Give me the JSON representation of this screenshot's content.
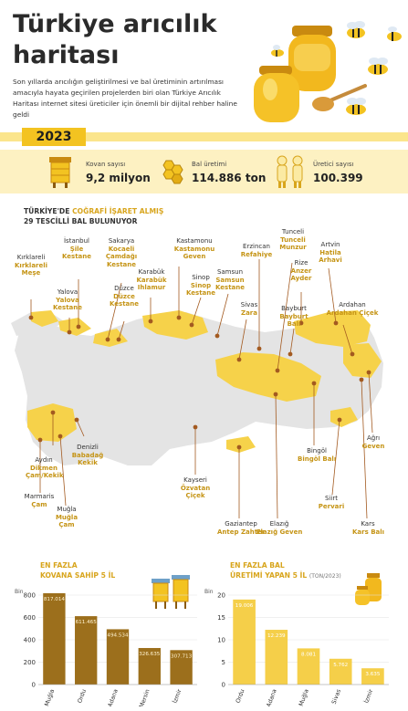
{
  "title": "Türkiye arıcılık haritası",
  "intro": "Son yıllarda arıcılığın geliştirilmesi ve bal üretiminin artırılması amacıyla hayata geçirilen projelerden biri olan Türkiye Arıcılık Haritası internet sitesi üreticiler için önemli bir dijital rehber haline geldi",
  "year": "2023",
  "colors": {
    "accent": "#f3c321",
    "light": "#fdf1c2",
    "map_base": "#e4e4e4",
    "map_region": "#f6d24a",
    "pin": "#a35a20",
    "bar_brown": "#9c6f1c",
    "bar_gold": "#f5cf49"
  },
  "stats": [
    {
      "label": "Kovan sayısı",
      "value": "9,2 milyon",
      "icon": "beehive-icon"
    },
    {
      "label": "Bal üretimi",
      "value": "114.886 ton",
      "icon": "honeycomb-icon"
    },
    {
      "label": "Üretici sayısı",
      "value": "100.399",
      "icon": "beekeepers-icon"
    }
  ],
  "map_heading": {
    "line1_prefix": "TÜRKİYE'DE ",
    "line1_highlight": "COĞRAFİ İŞARET ALMIŞ",
    "line2": "29 TESCİLLİ BAL BULUNUYOR"
  },
  "map_labels": [
    {
      "region": "İstanbul",
      "honeys": [
        "Şile",
        "Kestane"
      ]
    },
    {
      "region": "Kırklareli",
      "honeys": [
        "Kırklareli",
        "Meşe"
      ]
    },
    {
      "region": "Yalova",
      "honeys": [
        "Yalova",
        "Kestane"
      ]
    },
    {
      "region": "Sakarya",
      "honeys": [
        "Kocaeli",
        "Çamdağı",
        "Kestane"
      ]
    },
    {
      "region": "Düzce",
      "honeys": [
        "Düzce",
        "Kestane"
      ]
    },
    {
      "region": "Karabük",
      "honeys": [
        "Karabük",
        "Ihlamur"
      ]
    },
    {
      "region": "Kastamonu",
      "honeys": [
        "Kastamonu",
        "Geven"
      ]
    },
    {
      "region": "Sinop",
      "honeys": [
        "Sinop",
        "Kestane"
      ]
    },
    {
      "region": "Samsun",
      "honeys": [
        "Samsun",
        "Kestane"
      ]
    },
    {
      "region": "Sivas",
      "honeys": [
        "Zara"
      ]
    },
    {
      "region": "Erzincan",
      "honeys": [
        "Refahiye"
      ]
    },
    {
      "region": "Tunceli",
      "honeys": [
        "Tunceli",
        "Munzur"
      ]
    },
    {
      "region": "Rize",
      "honeys": [
        "Anzer",
        "Ayder"
      ]
    },
    {
      "region": "Artvin",
      "honeys": [
        "Hatila",
        "Arhavi"
      ]
    },
    {
      "region": "Bayburt",
      "honeys": [
        "Bayburt",
        "Balı"
      ]
    },
    {
      "region": "Ardahan",
      "honeys": [
        "Ardahan Çiçek"
      ]
    },
    {
      "region": "Aydın",
      "honeys": [
        "Dikmen",
        "Çam/Kekik"
      ]
    },
    {
      "region": "Denizli",
      "honeys": [
        "Babadağ",
        "Kekik"
      ]
    },
    {
      "region": "Marmaris",
      "honeys": [
        "Çam"
      ]
    },
    {
      "region": "Muğla",
      "honeys": [
        "Muğla",
        "Çam"
      ]
    },
    {
      "region": "Kayseri",
      "honeys": [
        "Özvatan",
        "Çiçek"
      ]
    },
    {
      "region": "Gaziantep",
      "honeys": [
        "Antep Zahter"
      ]
    },
    {
      "region": "Elazığ",
      "honeys": [
        "Elazığ Geven"
      ]
    },
    {
      "region": "Bingöl",
      "honeys": [
        "Bingöl Balı"
      ]
    },
    {
      "region": "Siirt",
      "honeys": [
        "Pervari"
      ]
    },
    {
      "region": "Kars",
      "honeys": [
        "Kars Balı"
      ]
    },
    {
      "region": "Ağrı",
      "honeys": [
        "Geven"
      ]
    }
  ],
  "hive_section": {
    "line1": "EN FAZLA",
    "line2": "KOVANA SAHİP 5 İL"
  },
  "honey_section": {
    "line1": "EN FAZLA BAL",
    "line2": "ÜRETİMİ YAPAN 5 İL",
    "unit": "(TON/2023)"
  },
  "chart_data": [
    {
      "type": "bar",
      "title": "EN FAZLA KOVANA SAHİP 5 İL",
      "ylabel": "Bin",
      "categories": [
        "Muğla",
        "Ordu",
        "Adana",
        "Mersin",
        "İzmir"
      ],
      "values": [
        817.014,
        611.465,
        494.534,
        326.635,
        307.713
      ],
      "value_labels": [
        "817.014",
        "611.465",
        "494.534",
        "326.635",
        "307.713"
      ],
      "ylim": [
        0,
        800
      ],
      "yticks": [
        0,
        200,
        400,
        600,
        800
      ],
      "grid": true
    },
    {
      "type": "bar",
      "title": "EN FAZLA BAL ÜRETİMİ YAPAN 5 İL (TON/2023)",
      "ylabel": "Bin",
      "categories": [
        "Ordu",
        "Adana",
        "Muğla",
        "Sivas",
        "İzmir"
      ],
      "values": [
        19.006,
        12.239,
        8.081,
        5.762,
        3.635
      ],
      "value_labels": [
        "19.006",
        "12.239",
        "8.081",
        "5.762",
        "3.635"
      ],
      "ylim": [
        0,
        20
      ],
      "yticks": [
        0,
        5,
        10,
        15,
        20
      ],
      "grid": true
    }
  ]
}
